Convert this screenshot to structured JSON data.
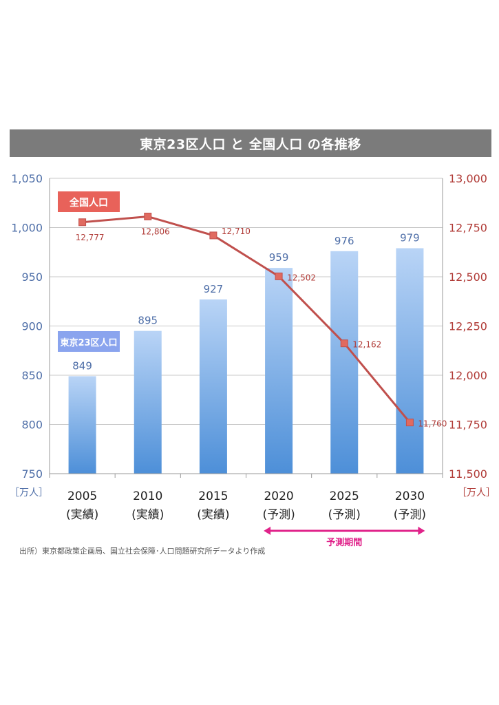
{
  "chart_data": {
    "type": "bar+line",
    "title": "東京23区人口 と 全国人口 の各推移",
    "categories": [
      {
        "year": "2005",
        "note": "(実績)"
      },
      {
        "year": "2010",
        "note": "(実績)"
      },
      {
        "year": "2015",
        "note": "(実績)"
      },
      {
        "year": "2020",
        "note": "(予測)"
      },
      {
        "year": "2025",
        "note": "(予測)"
      },
      {
        "year": "2030",
        "note": "(予測)"
      }
    ],
    "series": [
      {
        "name": "東京23区人口",
        "type": "bar",
        "axis": "left",
        "values": [
          849,
          895,
          927,
          959,
          976,
          979
        ],
        "labels": [
          "849",
          "895",
          "927",
          "959",
          "976",
          "979"
        ]
      },
      {
        "name": "全国人口",
        "type": "line",
        "axis": "right",
        "values": [
          12777,
          12806,
          12710,
          12502,
          12162,
          11760
        ],
        "labels": [
          "12,777",
          "12,806",
          "12,710",
          "12,502",
          "12,162",
          "11,760"
        ]
      }
    ],
    "left_axis": {
      "ylim": [
        750,
        1050
      ],
      "ticks": [
        750,
        800,
        850,
        900,
        950,
        1000,
        1050
      ],
      "tick_labels": [
        "750",
        "800",
        "850",
        "900",
        "950",
        "1,000",
        "1,050"
      ],
      "unit": "［万人］"
    },
    "right_axis": {
      "ylim": [
        11500,
        13000
      ],
      "ticks": [
        11500,
        11750,
        12000,
        12250,
        12500,
        12750,
        13000
      ],
      "tick_labels": [
        "11,500",
        "11,750",
        "12,000",
        "12,250",
        "12,500",
        "12,750",
        "13,000"
      ],
      "unit": "［万人］"
    },
    "grid": true,
    "forecast_label": "予測期間",
    "source": "出所）東京都政策企画局、国立社会保障･人口問題研究所データより作成"
  },
  "colors": {
    "bar_top": "#b9d4f6",
    "bar_bottom": "#4d8fd8",
    "line": "#c0504d",
    "line_marker": "#e06a60",
    "left_text": "#4f6fa8",
    "right_text": "#b03a36",
    "national_label_bg": "#e8625a",
    "tokyo_label_bg": "#8aa4ee",
    "forecast_arrow": "#e0238a",
    "grid": "#c8c8c8"
  }
}
